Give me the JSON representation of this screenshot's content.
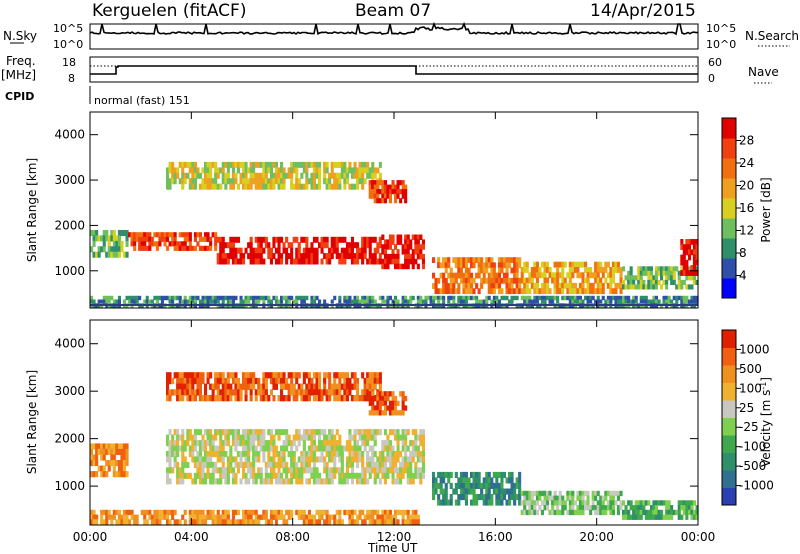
{
  "header": {
    "station": "Kerguelen (fitACF)",
    "beam": "Beam 07",
    "date": "14/Apr/2015"
  },
  "top_panels": {
    "nsky_label": "N.Sky",
    "nsky_ticks": [
      "10^5",
      "10^0"
    ],
    "nsearch_label": "N.Search",
    "nsearch_ticks": [
      "10^5",
      "10^0"
    ],
    "freq_label_1": "Freq.",
    "freq_label_2": "[MHz]",
    "freq_ticks": [
      "18",
      "8"
    ],
    "nave_label": "Nave",
    "nave_ticks": [
      "60",
      "0"
    ],
    "cpid_label": "CPID",
    "cpid_text": "normal (fast) 151"
  },
  "colorbars": {
    "power": {
      "label": "Power [dB]",
      "ticks": [
        "28",
        "24",
        "20",
        "16",
        "12",
        "8",
        "4"
      ],
      "colors": [
        "#0000ff",
        "#2f4fa8",
        "#2f8f6a",
        "#6fbf5f",
        "#d8d020",
        "#f0a020",
        "#f07010",
        "#f04010",
        "#e00000"
      ]
    },
    "velocity": {
      "label": "Velocity [m s",
      "label_exp": "-1",
      "label_close": "]",
      "ticks": [
        "1000",
        "500",
        "100",
        "25",
        "-25",
        "-100",
        "-500",
        "-1000"
      ],
      "colors": [
        "#2a3fb0",
        "#2f6f8f",
        "#2f8f6a",
        "#3fa84f",
        "#7fd04f",
        "#c8c8c0",
        "#f0b030",
        "#f09020",
        "#f06010",
        "#e02000"
      ]
    }
  },
  "chart_data": [
    {
      "type": "heatmap",
      "name": "power",
      "xlabel": "Time UT",
      "ylabel": "Slant Range [km]",
      "x_ticks": [
        "00:00",
        "04:00",
        "08:00",
        "12:00",
        "16:00",
        "20:00",
        "00:00"
      ],
      "y_ticks": [
        "4000",
        "3000",
        "2000",
        "1000"
      ],
      "xlim_hours": [
        0,
        24
      ],
      "ylim_km": [
        180,
        4500
      ],
      "bands": [
        {
          "t0": 0.0,
          "t1": 1.5,
          "r0": 1300,
          "r1": 1900,
          "level": 3
        },
        {
          "t0": 1.5,
          "t1": 5.0,
          "r0": 1450,
          "r1": 1850,
          "level": 7
        },
        {
          "t0": 5.0,
          "t1": 11.5,
          "r0": 1150,
          "r1": 1750,
          "level": 8
        },
        {
          "t0": 11.5,
          "t1": 13.2,
          "r0": 1050,
          "r1": 1800,
          "level": 8
        },
        {
          "t0": 13.5,
          "t1": 17.0,
          "r0": 500,
          "r1": 1300,
          "level": 6
        },
        {
          "t0": 17.0,
          "t1": 21.0,
          "r0": 500,
          "r1": 1200,
          "level": 5
        },
        {
          "t0": 21.0,
          "t1": 24.0,
          "r0": 600,
          "r1": 1100,
          "level": 3
        },
        {
          "t0": 23.3,
          "t1": 24.0,
          "r0": 900,
          "r1": 1700,
          "level": 8
        },
        {
          "t0": 3.0,
          "t1": 11.5,
          "r0": 2800,
          "r1": 3400,
          "level": 4
        },
        {
          "t0": 11.0,
          "t1": 12.5,
          "r0": 2500,
          "r1": 3000,
          "level": 7
        },
        {
          "t0": 0.0,
          "t1": 24.0,
          "r0": 200,
          "r1": 450,
          "level": 2
        }
      ]
    },
    {
      "type": "heatmap",
      "name": "velocity",
      "xlabel": "Time UT",
      "ylabel": "Slant Range [km]",
      "x_ticks": [
        "00:00",
        "04:00",
        "08:00",
        "12:00",
        "16:00",
        "20:00",
        "00:00"
      ],
      "y_ticks": [
        "4000",
        "3000",
        "2000",
        "1000"
      ],
      "xlim_hours": [
        0,
        24
      ],
      "ylim_km": [
        180,
        4500
      ],
      "bands": [
        {
          "t0": 0.0,
          "t1": 1.5,
          "r0": 1200,
          "r1": 1900,
          "level": 7
        },
        {
          "t0": 3.0,
          "t1": 13.2,
          "r0": 1050,
          "r1": 2200,
          "level": 5
        },
        {
          "t0": 3.0,
          "t1": 11.5,
          "r0": 2800,
          "r1": 3400,
          "level": 8
        },
        {
          "t0": 11.0,
          "t1": 12.5,
          "r0": 2500,
          "r1": 3000,
          "level": 8
        },
        {
          "t0": 13.5,
          "t1": 17.0,
          "r0": 600,
          "r1": 1300,
          "level": 2
        },
        {
          "t0": 17.0,
          "t1": 21.0,
          "r0": 400,
          "r1": 900,
          "level": 4
        },
        {
          "t0": 21.0,
          "t1": 24.0,
          "r0": 300,
          "r1": 700,
          "level": 3
        },
        {
          "t0": 0.0,
          "t1": 13.0,
          "r0": 200,
          "r1": 500,
          "level": 7
        }
      ]
    }
  ]
}
